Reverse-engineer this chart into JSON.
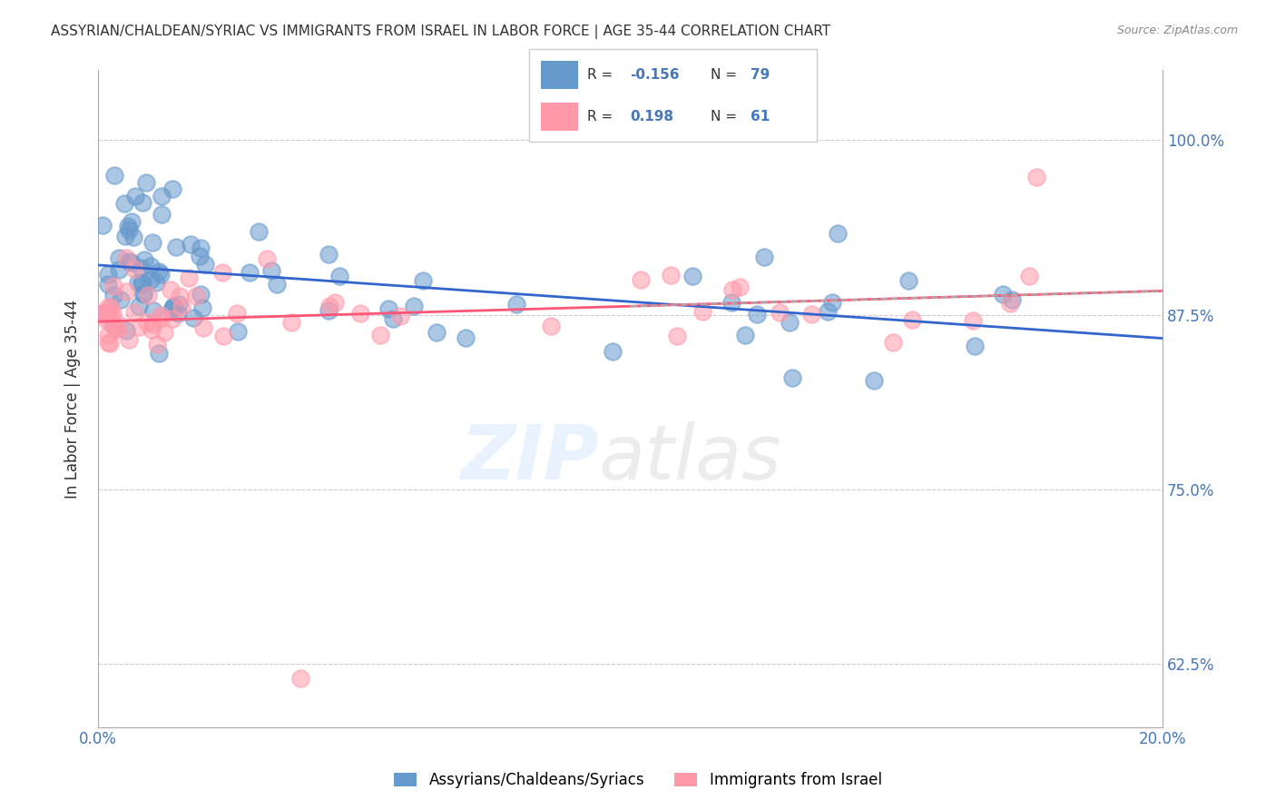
{
  "title": "ASSYRIAN/CHALDEAN/SYRIAC VS IMMIGRANTS FROM ISRAEL IN LABOR FORCE | AGE 35-44 CORRELATION CHART",
  "source": "Source: ZipAtlas.com",
  "ylabel": "In Labor Force | Age 35-44",
  "xlim": [
    0.0,
    0.2
  ],
  "ylim": [
    0.58,
    1.05
  ],
  "xticks": [
    0.0,
    0.04,
    0.08,
    0.12,
    0.16,
    0.2
  ],
  "xticklabels": [
    "0.0%",
    "",
    "",
    "",
    "",
    "20.0%"
  ],
  "yticks": [
    0.625,
    0.75,
    0.875,
    1.0
  ],
  "yticklabels": [
    "62.5%",
    "75.0%",
    "87.5%",
    "100.0%"
  ],
  "blue_R": -0.156,
  "blue_N": 79,
  "pink_R": 0.198,
  "pink_N": 61,
  "blue_color": "#6699CC",
  "pink_color": "#FF99AA",
  "blue_label": "Assyrians/Chaldeans/Syriacs",
  "pink_label": "Immigrants from Israel",
  "background_color": "#FFFFFF",
  "grid_color": "#CCCCCC",
  "tick_color": "#4477BB",
  "axis_color": "#AAAAAA"
}
